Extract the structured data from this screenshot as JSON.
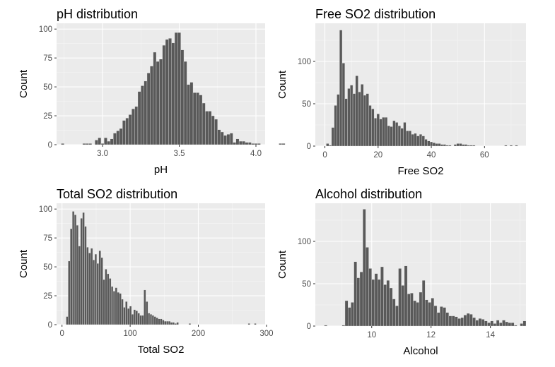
{
  "colors": {
    "panel_background": "#ebebeb",
    "grid_major": "#ffffff",
    "grid_minor": "#f5f5f5",
    "bar_fill": "#595959",
    "bar_edge": "#ebebeb",
    "tick_text": "#4d4d4d",
    "tick_mark": "#333333"
  },
  "chart_data": [
    {
      "type": "bar",
      "title": "pH distribution",
      "xlabel": "pH",
      "ylabel": "Count",
      "xlim": [
        2.7,
        4.06
      ],
      "ylim": [
        0,
        105
      ],
      "xticks": [
        3.0,
        3.5,
        4.0
      ],
      "xtick_labels": [
        "3.0",
        "3.5",
        "4.0"
      ],
      "yticks": [
        0,
        25,
        50,
        75,
        100
      ],
      "ytick_labels": [
        "0",
        "25",
        "50",
        "75",
        "100"
      ],
      "grid": true,
      "bin_start": 2.73,
      "bin_width": 0.02,
      "counts": [
        1,
        0,
        0,
        0,
        0,
        0,
        0,
        1,
        1,
        1,
        0,
        4,
        6,
        1,
        6,
        3,
        5,
        10,
        12,
        14,
        21,
        23,
        26,
        31,
        33,
        46,
        51,
        55,
        62,
        68,
        80,
        72,
        74,
        86,
        91,
        92,
        88,
        97,
        97,
        82,
        72,
        52,
        54,
        45,
        45,
        43,
        36,
        29,
        29,
        25,
        22,
        13,
        11,
        8,
        9,
        10,
        2,
        5,
        3,
        3,
        2,
        2,
        1,
        1,
        1,
        0,
        0,
        0,
        0,
        0,
        0,
        1,
        1,
        0,
        0,
        0,
        0,
        0,
        0,
        0,
        0,
        0,
        0,
        0,
        0,
        0,
        0,
        0,
        0,
        0,
        0,
        0,
        0,
        0,
        0,
        0,
        0,
        0,
        0,
        0,
        0,
        1,
        0,
        0,
        0,
        0,
        0,
        0,
        0,
        0,
        1
      ]
    },
    {
      "type": "bar",
      "title": "Free SO2 distribution",
      "xlabel": "Free SO2",
      "ylabel": "Count",
      "xlim": [
        -3.6,
        75.6
      ],
      "ylim": [
        0,
        145
      ],
      "xticks": [
        0,
        20,
        40,
        60
      ],
      "xtick_labels": [
        "0",
        "20",
        "40",
        "60"
      ],
      "yticks": [
        0,
        50,
        100
      ],
      "ytick_labels": [
        "0",
        "50",
        "100"
      ],
      "grid": true,
      "bin_start": 0.5,
      "bin_width": 1.0,
      "counts": [
        3,
        1,
        22,
        48,
        61,
        137,
        98,
        56,
        68,
        72,
        62,
        83,
        64,
        73,
        60,
        62,
        48,
        44,
        33,
        38,
        32,
        34,
        34,
        24,
        23,
        30,
        28,
        24,
        21,
        28,
        18,
        18,
        14,
        15,
        12,
        14,
        12,
        8,
        6,
        5,
        4,
        3,
        3,
        2,
        2,
        1,
        1,
        0,
        2,
        3,
        3,
        2,
        2,
        1,
        1,
        1,
        0,
        0,
        0,
        0,
        0,
        0,
        0,
        0,
        0,
        0,
        0,
        1,
        0,
        1,
        0,
        1
      ]
    },
    {
      "type": "bar",
      "title": "Total SO2 distribution",
      "xlabel": "Total SO2",
      "ylabel": "Count",
      "xlim": [
        -8,
        298
      ],
      "ylim": [
        0,
        105
      ],
      "xticks": [
        0,
        100,
        200,
        300
      ],
      "xtick_labels": [
        "0",
        "100",
        "200",
        "300"
      ],
      "yticks": [
        0,
        25,
        50,
        75,
        100
      ],
      "ytick_labels": [
        "0",
        "25",
        "50",
        "75",
        "100"
      ],
      "grid": true,
      "bin_start": 6,
      "bin_width": 3,
      "counts": [
        7,
        55,
        83,
        98,
        95,
        86,
        68,
        92,
        97,
        85,
        67,
        62,
        66,
        56,
        61,
        53,
        64,
        58,
        39,
        48,
        44,
        40,
        33,
        29,
        32,
        28,
        27,
        22,
        15,
        20,
        14,
        16,
        9,
        13,
        12,
        10,
        8,
        8,
        30,
        20,
        10,
        9,
        8,
        7,
        6,
        5,
        5,
        4,
        3,
        3,
        3,
        2,
        2,
        1,
        2,
        0,
        0,
        0,
        0,
        0,
        1,
        0,
        0,
        0,
        0,
        0,
        0,
        0,
        0,
        0,
        0,
        0,
        0,
        0,
        0,
        0,
        0,
        0,
        0,
        0,
        0,
        0,
        0,
        0,
        0,
        0,
        0,
        0,
        0,
        1,
        0,
        0,
        1
      ]
    },
    {
      "type": "bar",
      "title": "Alcohol distribution",
      "xlabel": "Alcohol",
      "ylabel": "Count",
      "xlim": [
        8.1,
        15.2
      ],
      "ylim": [
        0,
        145
      ],
      "xticks": [
        10,
        12,
        14
      ],
      "xtick_labels": [
        "10",
        "12",
        "14"
      ],
      "yticks": [
        0,
        50,
        100
      ],
      "ytick_labels": [
        "0",
        "50",
        "100"
      ],
      "grid": true,
      "bin_start": 8.4,
      "bin_width": 0.1,
      "counts": [
        1,
        0,
        0,
        0,
        0,
        0,
        1,
        30,
        22,
        28,
        76,
        57,
        64,
        138,
        93,
        68,
        55,
        62,
        55,
        70,
        49,
        54,
        45,
        32,
        24,
        68,
        48,
        71,
        38,
        39,
        30,
        28,
        40,
        54,
        31,
        28,
        33,
        24,
        16,
        23,
        22,
        16,
        12,
        12,
        11,
        9,
        10,
        13,
        15,
        14,
        10,
        7,
        9,
        8,
        6,
        4,
        6,
        3,
        7,
        4,
        7,
        5,
        4,
        4,
        1,
        0,
        3,
        6,
        0,
        0,
        0,
        0,
        0,
        0,
        0,
        0,
        0,
        0,
        0,
        0,
        0,
        0,
        0,
        0,
        0,
        0,
        0,
        0,
        0,
        0,
        0,
        0,
        0,
        0,
        1
      ]
    }
  ]
}
